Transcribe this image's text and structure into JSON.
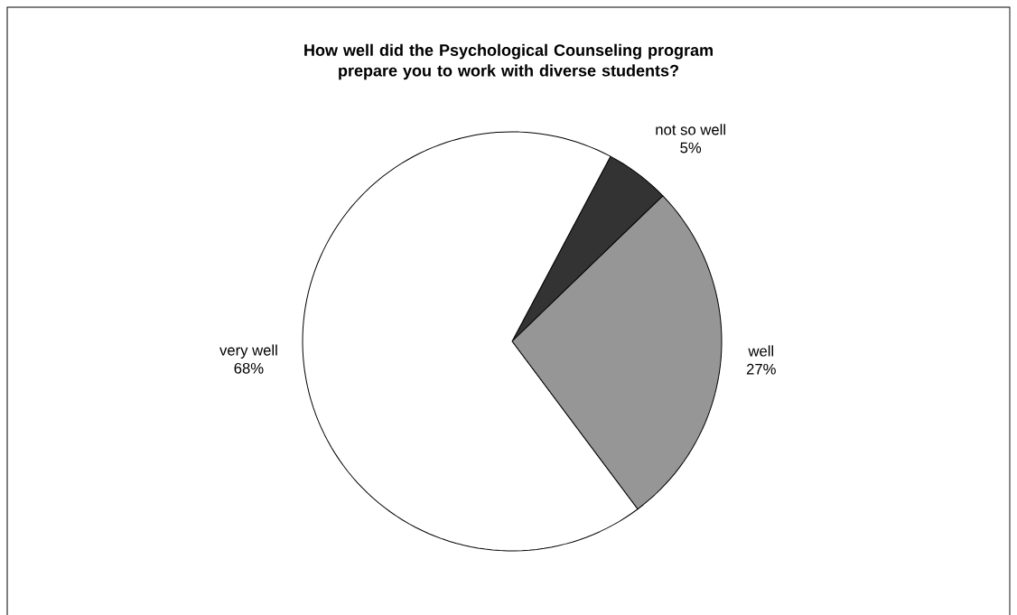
{
  "chart_data": {
    "type": "pie",
    "title": "How well did the Psychological Counseling program prepare you to work with diverse students?",
    "categories": [
      "not so well",
      "well",
      "very well"
    ],
    "values": [
      5,
      27,
      68
    ],
    "colors": [
      "#333333",
      "#969696",
      "#ffffff"
    ],
    "value_labels": [
      "5%",
      "27%",
      "68%"
    ]
  }
}
